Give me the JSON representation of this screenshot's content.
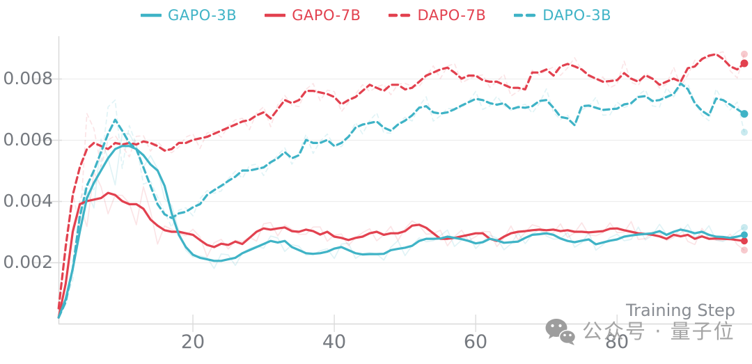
{
  "chart_data": {
    "type": "line",
    "title": "",
    "xlabel": "Training Step",
    "ylabel": "",
    "xlim": [
      1,
      99
    ],
    "ylim": [
      0,
      0.0093
    ],
    "x_ticks": [
      "20",
      "40",
      "60",
      "80"
    ],
    "y_tick_labels": [
      "0.008",
      "0.006",
      "0.004",
      "0.002"
    ],
    "y_tick_values": [
      0.008,
      0.006,
      0.004,
      0.002
    ],
    "grid": "horizontal",
    "legend_position": "top-center",
    "x_start": 1,
    "x_step": 1,
    "series": [
      {
        "name": "GAPO-3B",
        "color": "#3fb3c6",
        "style": "solid",
        "end_dot": true,
        "raw_overlay": {
          "opacity": 0.16,
          "base_amp": 0.00035,
          "warm_amp": 0.0012,
          "warm_center": 8,
          "warm_width": 30,
          "phase": 0.7,
          "raw_end_value": 0.00314
        },
        "values": [
          0.0002,
          0.0008,
          0.0018,
          0.003,
          0.0041,
          0.0046,
          0.005,
          0.0054,
          0.0057,
          0.0058,
          0.0058,
          0.0057,
          0.0055,
          0.0052,
          0.005,
          0.0045,
          0.0036,
          0.0029,
          0.0025,
          0.00225,
          0.00215,
          0.0021,
          0.00205,
          0.00205,
          0.0021,
          0.00215,
          0.0023,
          0.0024,
          0.0025,
          0.0026,
          0.0027,
          0.00265,
          0.0027,
          0.0025,
          0.0024,
          0.0023,
          0.00228,
          0.0023,
          0.00235,
          0.00245,
          0.0025,
          0.0024,
          0.0023,
          0.00226,
          0.00227,
          0.00227,
          0.00228,
          0.0024,
          0.00244,
          0.00248,
          0.00254,
          0.0027,
          0.00277,
          0.00277,
          0.00278,
          0.00284,
          0.0028,
          0.00276,
          0.0027,
          0.00262,
          0.00266,
          0.00277,
          0.00272,
          0.00264,
          0.00266,
          0.00268,
          0.0028,
          0.0029,
          0.00292,
          0.00295,
          0.0029,
          0.00278,
          0.0027,
          0.00266,
          0.00271,
          0.00275,
          0.00259,
          0.00265,
          0.00271,
          0.00275,
          0.00284,
          0.00288,
          0.00291,
          0.00293,
          0.00295,
          0.00302,
          0.0029,
          0.003,
          0.00307,
          0.00302,
          0.00295,
          0.003,
          0.0029,
          0.00284,
          0.00283,
          0.0028,
          0.00284,
          0.0029
        ]
      },
      {
        "name": "GAPO-7B",
        "color": "#e2414f",
        "style": "solid",
        "end_dot": true,
        "raw_overlay": {
          "opacity": 0.14,
          "base_amp": 0.00038,
          "warm_amp": 0.0011,
          "warm_center": 9,
          "warm_width": 30,
          "phase": 2.3,
          "raw_end_value": 0.0024
        },
        "values": [
          0.0002,
          0.0013,
          0.003,
          0.0039,
          0.004,
          0.00405,
          0.0041,
          0.00427,
          0.0042,
          0.004,
          0.0039,
          0.0039,
          0.00375,
          0.0034,
          0.0032,
          0.00305,
          0.003,
          0.003,
          0.00295,
          0.0029,
          0.00273,
          0.00257,
          0.0025,
          0.00261,
          0.00257,
          0.00268,
          0.0026,
          0.0028,
          0.003,
          0.00311,
          0.00307,
          0.00311,
          0.00314,
          0.00302,
          0.003,
          0.00307,
          0.00302,
          0.00291,
          0.003,
          0.00284,
          0.0028,
          0.00273,
          0.0028,
          0.00284,
          0.00295,
          0.003,
          0.0029,
          0.00295,
          0.00295,
          0.00302,
          0.0032,
          0.00323,
          0.00313,
          0.00295,
          0.00277,
          0.00277,
          0.0028,
          0.00285,
          0.0029,
          0.00295,
          0.00295,
          0.00277,
          0.0027,
          0.00284,
          0.00295,
          0.003,
          0.00302,
          0.00305,
          0.00307,
          0.00305,
          0.00307,
          0.00302,
          0.00305,
          0.003,
          0.003,
          0.00298,
          0.003,
          0.00302,
          0.0031,
          0.00311,
          0.00305,
          0.003,
          0.00295,
          0.00293,
          0.0029,
          0.00285,
          0.00277,
          0.0029,
          0.00285,
          0.0029,
          0.00277,
          0.00285,
          0.00277,
          0.00278,
          0.00277,
          0.00276,
          0.00273,
          0.0027
        ]
      },
      {
        "name": "DAPO-7B",
        "color": "#e2414f",
        "style": "dashed",
        "end_dot": true,
        "raw_overlay": {
          "opacity": 0.14,
          "base_amp": 0.0004,
          "warm_amp": 0.0018,
          "warm_center": 5,
          "warm_width": 16,
          "phase": 4.1,
          "raw_end_value": 0.0088
        },
        "values": [
          0.0005,
          0.0025,
          0.0042,
          0.0051,
          0.0057,
          0.0059,
          0.0058,
          0.0057,
          0.0059,
          0.00585,
          0.0059,
          0.00585,
          0.00595,
          0.0059,
          0.0058,
          0.00565,
          0.0057,
          0.0059,
          0.0059,
          0.006,
          0.00605,
          0.0061,
          0.0062,
          0.0063,
          0.0064,
          0.0065,
          0.0066,
          0.00665,
          0.0068,
          0.0069,
          0.0067,
          0.007,
          0.0073,
          0.0072,
          0.0073,
          0.0076,
          0.0076,
          0.00755,
          0.0075,
          0.0074,
          0.00716,
          0.0073,
          0.0074,
          0.0076,
          0.0078,
          0.0077,
          0.0076,
          0.0078,
          0.0078,
          0.00765,
          0.0077,
          0.0079,
          0.0081,
          0.0082,
          0.0083,
          0.00836,
          0.0082,
          0.008,
          0.0081,
          0.0081,
          0.00795,
          0.0079,
          0.0079,
          0.0078,
          0.0077,
          0.0077,
          0.00765,
          0.0082,
          0.0082,
          0.0083,
          0.0081,
          0.0084,
          0.00848,
          0.0084,
          0.0083,
          0.00811,
          0.008,
          0.0079,
          0.00792,
          0.00795,
          0.00818,
          0.008,
          0.0079,
          0.00811,
          0.008,
          0.0078,
          0.0079,
          0.008,
          0.0079,
          0.00834,
          0.0084,
          0.00864,
          0.00875,
          0.0088,
          0.00864,
          0.0084,
          0.0083,
          0.0085
        ]
      },
      {
        "name": "DAPO-3B",
        "color": "#3fb3c6",
        "style": "dashed",
        "end_dot": true,
        "raw_overlay": {
          "opacity": 0.16,
          "base_amp": 0.00038,
          "warm_amp": 0.0014,
          "warm_center": 8,
          "warm_width": 24,
          "phase": 5.6,
          "raw_end_value": 0.00625
        },
        "values": [
          0.0002,
          0.0007,
          0.0018,
          0.0035,
          0.0045,
          0.005,
          0.0056,
          0.0062,
          0.00666,
          0.0063,
          0.0059,
          0.0057,
          0.0051,
          0.0045,
          0.0039,
          0.00357,
          0.00345,
          0.0036,
          0.00365,
          0.0038,
          0.0039,
          0.0042,
          0.00436,
          0.0045,
          0.00466,
          0.0048,
          0.005,
          0.005,
          0.00505,
          0.0051,
          0.00527,
          0.0054,
          0.0056,
          0.0054,
          0.0055,
          0.006,
          0.0059,
          0.0059,
          0.006,
          0.0058,
          0.0059,
          0.0061,
          0.0064,
          0.0065,
          0.00655,
          0.0066,
          0.0064,
          0.0063,
          0.0065,
          0.00663,
          0.0068,
          0.00705,
          0.0071,
          0.0069,
          0.00686,
          0.0069,
          0.007,
          0.00712,
          0.00723,
          0.00734,
          0.0073,
          0.0072,
          0.00715,
          0.0072,
          0.007,
          0.00707,
          0.00705,
          0.0071,
          0.00727,
          0.0073,
          0.00705,
          0.00675,
          0.0067,
          0.00648,
          0.0071,
          0.00712,
          0.00705,
          0.00698,
          0.007,
          0.00702,
          0.00716,
          0.0072,
          0.0074,
          0.00743,
          0.00727,
          0.0073,
          0.0074,
          0.0075,
          0.00784,
          0.00766,
          0.0072,
          0.00695,
          0.0068,
          0.00735,
          0.0073,
          0.00715,
          0.007,
          0.00685
        ]
      }
    ]
  },
  "watermark": {
    "icon": "wechat-icon",
    "text": "公众号 · 量子位"
  }
}
